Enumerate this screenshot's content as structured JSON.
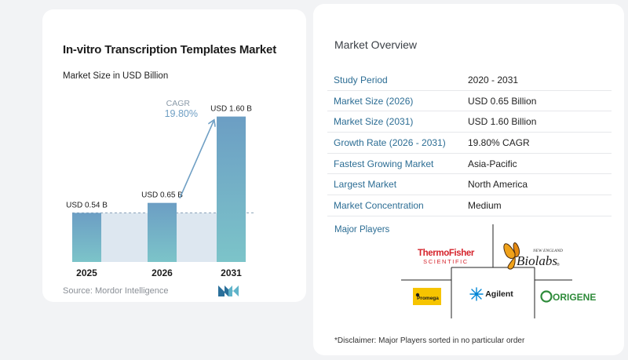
{
  "chart_data": {
    "type": "bar",
    "title": "In-vitro Transcription Templates Market",
    "subtitle": "Market Size in USD Billion",
    "categories": [
      "2025",
      "2026",
      "2031"
    ],
    "values": [
      0.54,
      0.65,
      1.6
    ],
    "value_labels": [
      "USD 0.54 B",
      "USD 0.65 B",
      "USD 1.60 B"
    ],
    "ylim": [
      0,
      1.7
    ],
    "grid": false,
    "cagr_label": "CAGR",
    "cagr_value": "19.80%",
    "colors": {
      "bar_top": "#6c9ec4",
      "bar_bottom": "#7cc4c9",
      "arrow": "#6f9fc4",
      "band": "#dde7f0"
    }
  },
  "source": "Source:  Mordor Intelligence",
  "overview": {
    "title": "Market Overview",
    "rows": [
      {
        "label": "Study Period",
        "value": "2020 - 2031"
      },
      {
        "label": "Market Size (2026)",
        "value": "USD 0.65 Billion"
      },
      {
        "label": "Market Size (2031)",
        "value": "USD 1.60 Billion"
      },
      {
        "label": "Growth Rate (2026 - 2031)",
        "value": "19.80% CAGR"
      },
      {
        "label": "Fastest Growing Market",
        "value": "Asia-Pacific"
      },
      {
        "label": "Largest Market",
        "value": "North America"
      },
      {
        "label": "Market Concentration",
        "value": "Medium"
      }
    ]
  },
  "players": {
    "title": "Major Players",
    "thermo_line1": "ThermoFisher",
    "thermo_line2": "SCIENTIFIC",
    "neb_line1": "NEW ENGLAND",
    "neb_line2": "Biolabs",
    "neb_mark": "®",
    "promega": "Promega",
    "agilent": "Agilent",
    "origene": "ORIGENE"
  },
  "disclaimer": "*Disclaimer: Major Players sorted in no particular order"
}
